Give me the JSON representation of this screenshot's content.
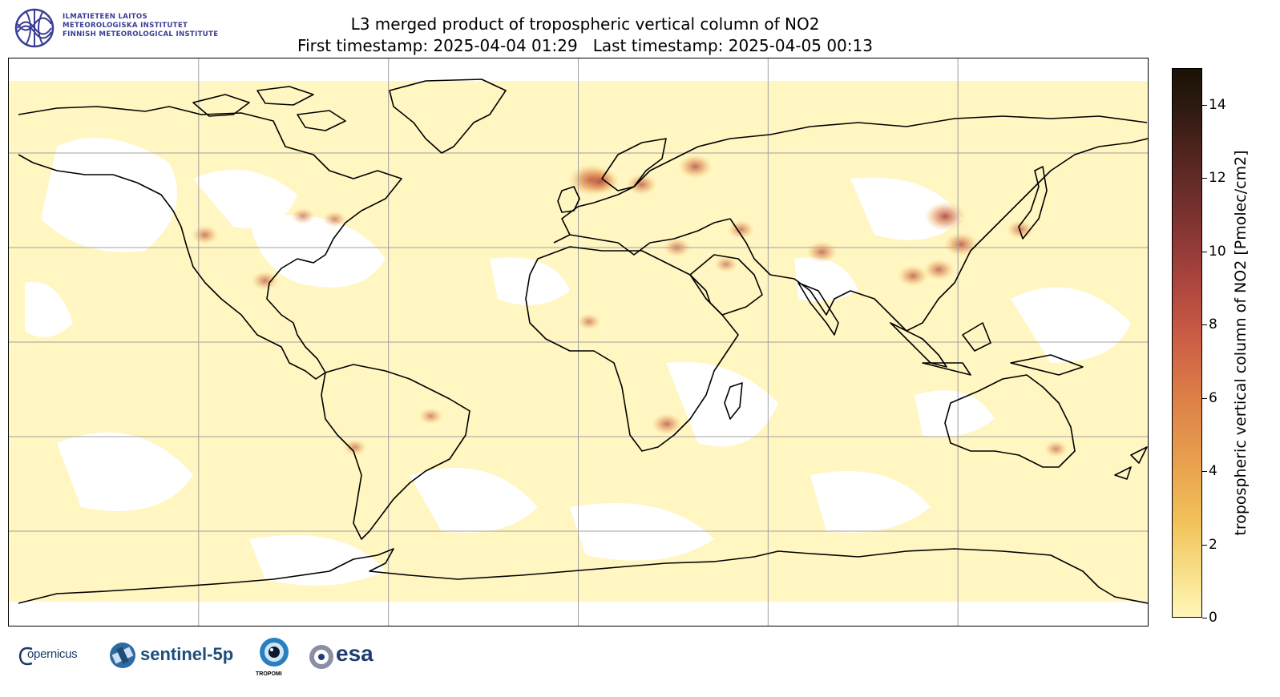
{
  "header": {
    "logo_lines": [
      "ILMATIETEEN LAITOS",
      "METEOROLOGISKA INSTITUTET",
      "FINNISH METEOROLOGICAL INSTITUTE"
    ],
    "logo_color": "#3a3e94",
    "title_line1": "L3 merged product of tropospheric vertical column of NO2",
    "title_line2": "First timestamp: 2025-04-04 01:29   Last timestamp: 2025-04-05 00:13"
  },
  "map": {
    "projection": "plate-carree",
    "graticule": {
      "longitudes": [
        -120,
        -60,
        0,
        60,
        120
      ],
      "latitudes": [
        -60,
        -30,
        0,
        30,
        60
      ]
    },
    "background_color": "#fff7c6",
    "coastline_color": "#000000",
    "gridline_color": "#a0a0a0",
    "hotspots": [
      {
        "lon": -87,
        "lat": 40,
        "value": 4
      },
      {
        "lon": -77,
        "lat": 39,
        "value": 4
      },
      {
        "lon": -118,
        "lat": 34,
        "value": 5
      },
      {
        "lon": -99,
        "lat": 19.5,
        "value": 5
      },
      {
        "lon": 4,
        "lat": 51.5,
        "value": 10
      },
      {
        "lon": 7,
        "lat": 51,
        "value": 8
      },
      {
        "lon": 20,
        "lat": 50,
        "value": 6
      },
      {
        "lon": 37,
        "lat": 55.7,
        "value": 7
      },
      {
        "lon": 116,
        "lat": 39.9,
        "value": 9
      },
      {
        "lon": 121,
        "lat": 31,
        "value": 7
      },
      {
        "lon": 114,
        "lat": 23,
        "value": 6
      },
      {
        "lon": 105.8,
        "lat": 21,
        "value": 6
      },
      {
        "lon": 77,
        "lat": 28.6,
        "value": 6
      },
      {
        "lon": 51.4,
        "lat": 35.7,
        "value": 5
      },
      {
        "lon": 139.7,
        "lat": 35.7,
        "value": 5
      },
      {
        "lon": 28,
        "lat": -26,
        "value": 6
      },
      {
        "lon": 151,
        "lat": -33.9,
        "value": 4
      },
      {
        "lon": -46.6,
        "lat": -23.5,
        "value": 4
      },
      {
        "lon": -70.6,
        "lat": -33.4,
        "value": 4
      },
      {
        "lon": 31.2,
        "lat": 30,
        "value": 5
      },
      {
        "lon": 3.4,
        "lat": 6.5,
        "value": 4
      },
      {
        "lon": 46.7,
        "lat": 24.7,
        "value": 4
      }
    ]
  },
  "colorbar": {
    "label": "tropospheric vertical column of NO2 [Pmolec/cm2]",
    "min": 0,
    "max": 15,
    "ticks": [
      "0",
      "2",
      "4",
      "6",
      "8",
      "10",
      "12",
      "14"
    ],
    "tick_values": [
      0,
      2,
      4,
      6,
      8,
      10,
      12,
      14
    ],
    "colormap": "YlOrBr-heat"
  },
  "footer_logos": {
    "copernicus": "opernicus",
    "sentinel": "sentinel-5p",
    "tropomi": "TROPOMI",
    "esa": "esa"
  }
}
